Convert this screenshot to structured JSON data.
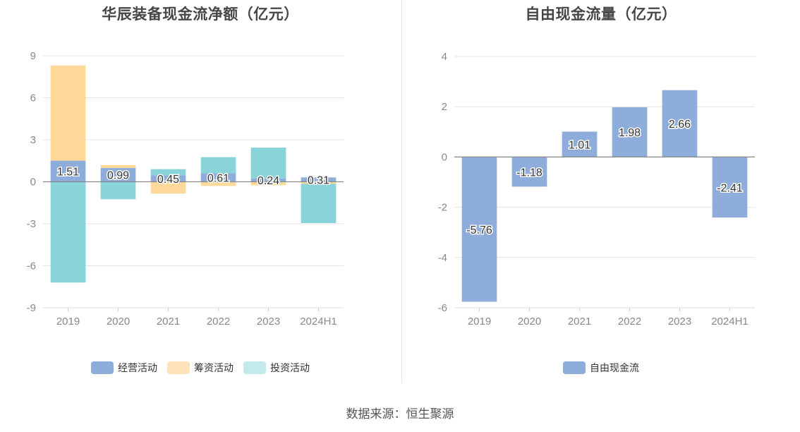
{
  "left": {
    "title": "华辰装备现金流净额（亿元）",
    "legend": [
      {
        "label": "经营活动",
        "color": "#8eadda"
      },
      {
        "label": "筹资活动",
        "color": "#fde3b7"
      },
      {
        "label": "投资活动",
        "color": "#c2eaec"
      }
    ]
  },
  "right": {
    "title": "自由现金流量（亿元）",
    "legend": [
      {
        "label": "自由现金流",
        "color": "#8eadda"
      }
    ]
  },
  "source": "数据来源：恒生聚源",
  "chart_data": [
    {
      "type": "bar",
      "stacked": true,
      "title": "华辰装备现金流净额（亿元）",
      "categories": [
        "2019",
        "2020",
        "2021",
        "2022",
        "2023",
        "2024H1"
      ],
      "ylim": [
        -9,
        9
      ],
      "yticks": [
        9,
        6,
        3,
        0,
        -3,
        -6,
        -9
      ],
      "grid": true,
      "legend_position": "bottom",
      "series": [
        {
          "name": "经营活动",
          "color": "#8eadda",
          "values": [
            1.51,
            0.99,
            0.45,
            0.61,
            0.24,
            0.31
          ],
          "labels": [
            "1.51",
            "0.99",
            "0.45",
            "0.61",
            "0.24",
            "0.31"
          ]
        },
        {
          "name": "筹资活动",
          "color": "#ffd99a",
          "values": [
            6.8,
            0.2,
            -0.85,
            -0.3,
            -0.25,
            -0.15
          ]
        },
        {
          "name": "投资活动",
          "color": "#88d4d8",
          "values": [
            -7.2,
            -1.25,
            0.45,
            1.15,
            2.2,
            -2.8
          ]
        }
      ]
    },
    {
      "type": "bar",
      "title": "自由现金流量（亿元）",
      "categories": [
        "2019",
        "2020",
        "2021",
        "2022",
        "2023",
        "2024H1"
      ],
      "ylim": [
        -6,
        4
      ],
      "yticks": [
        4,
        2,
        0,
        -2,
        -4,
        -6
      ],
      "grid": true,
      "legend_position": "bottom",
      "series": [
        {
          "name": "自由现金流",
          "color": "#8eadda",
          "values": [
            -5.76,
            -1.18,
            1.01,
            1.98,
            2.66,
            -2.41
          ],
          "labels": [
            "-5.76",
            "-1.18",
            "1.01",
            "1.98",
            "2.66",
            "-2.41"
          ]
        }
      ]
    }
  ]
}
